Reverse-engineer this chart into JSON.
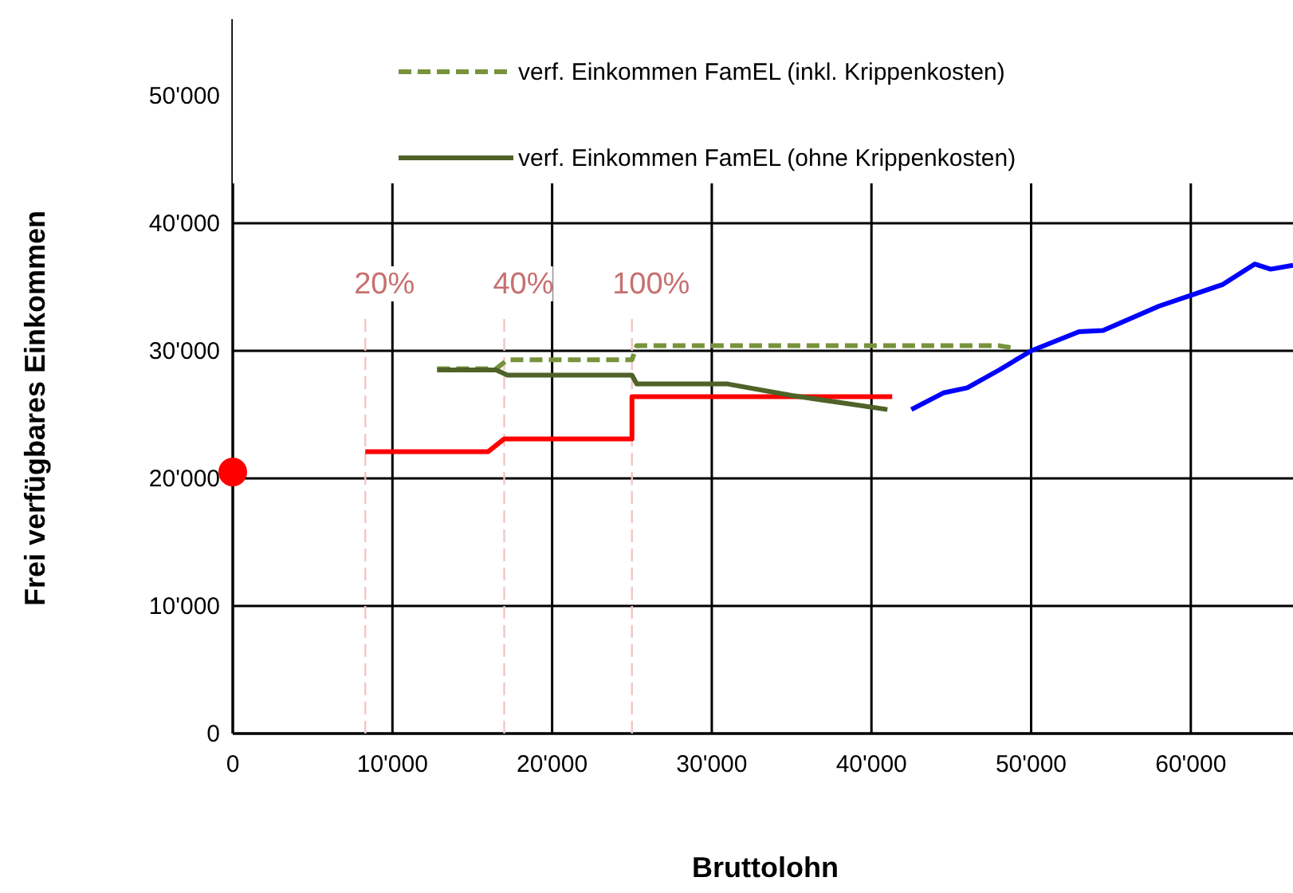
{
  "chart_data": {
    "type": "line",
    "xlabel": "Bruttolohn",
    "ylabel": "Frei verfügbares Einkommen",
    "xlim": [
      0,
      66400
    ],
    "ylim": [
      0,
      56000
    ],
    "xticks": [
      0,
      {
        "value": 10000,
        "label": "10'000"
      },
      {
        "value": 20000,
        "label": "20'000"
      },
      {
        "value": 30000,
        "label": "30'000"
      },
      {
        "value": 40000,
        "label": "40'000"
      },
      {
        "value": 50000,
        "label": "50'000"
      },
      {
        "value": 60000,
        "label": "60'000"
      }
    ],
    "yticks": [
      0,
      {
        "value": 10000,
        "label": "10'000"
      },
      {
        "value": 20000,
        "label": "20'000"
      },
      {
        "value": 30000,
        "label": "30'000"
      },
      {
        "value": 40000,
        "label": "40'000"
      },
      {
        "value": 50000,
        "label": "50'000"
      }
    ],
    "grid": true,
    "legend": "top",
    "series": [
      {
        "type": "scatter",
        "marker": "circle",
        "color": "#ff0000",
        "x": [
          0
        ],
        "values": [
          20500
        ]
      },
      {
        "color": "#ff0000",
        "x": [
          8300,
          16000,
          17000,
          25000,
          25000,
          41300
        ],
        "values": [
          22100,
          22100,
          23100,
          23100,
          26400,
          26400
        ]
      },
      {
        "name": "verf. Einkommen FamEL (inkl. Krippenkosten)",
        "color": "#77933c",
        "line_style": "dashed",
        "x": [
          12800,
          16500,
          17200,
          25000,
          25300,
          48000,
          49000
        ],
        "values": [
          28600,
          28600,
          29300,
          29300,
          30400,
          30400,
          30200
        ]
      },
      {
        "name": "verf. Einkommen FamEL (ohne Krippenkosten)",
        "color": "#4f6228",
        "x": [
          12800,
          16500,
          17200,
          25000,
          25300,
          31000,
          35000,
          41000
        ],
        "values": [
          28500,
          28500,
          28100,
          28100,
          27400,
          27400,
          26500,
          25400
        ]
      },
      {
        "color": "#0000ff",
        "x": [
          42500,
          44500,
          46000,
          48000,
          50000,
          53000,
          54500,
          58000,
          62000,
          64000,
          65000,
          66400
        ],
        "values": [
          25400,
          26700,
          27100,
          28500,
          30000,
          31500,
          31600,
          33500,
          35200,
          36800,
          36400,
          36700
        ]
      }
    ],
    "ref_lines": [
      {
        "axis": "x",
        "value": 8300,
        "color": "#f2c6c6",
        "line_style": "dashed"
      },
      {
        "axis": "x",
        "value": 17000,
        "color": "#f2c6c6",
        "line_style": "dashed"
      },
      {
        "axis": "x",
        "value": 25000,
        "color": "#f2c6c6",
        "line_style": "dashed"
      }
    ],
    "annotations": [
      "20%",
      "40%",
      "100%"
    ]
  }
}
